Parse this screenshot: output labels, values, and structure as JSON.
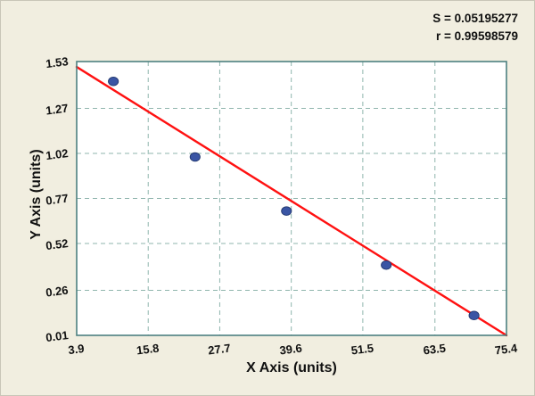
{
  "chart_data": {
    "type": "scatter",
    "title": "",
    "xlabel": "X Axis (units)",
    "ylabel": "Y Axis (units)",
    "xlim": [
      3.9,
      75.4
    ],
    "ylim": [
      0.01,
      1.53
    ],
    "x_ticks": [
      "3.9",
      "15.8",
      "27.7",
      "39.6",
      "51.5",
      "63.5",
      "75.4"
    ],
    "y_ticks": [
      "0.01",
      "0.26",
      "0.52",
      "0.77",
      "1.02",
      "1.27",
      "1.53"
    ],
    "grid": "dashed",
    "legend": "none",
    "points": [
      {
        "x": 10.0,
        "y": 1.42
      },
      {
        "x": 23.6,
        "y": 1.0
      },
      {
        "x": 38.8,
        "y": 0.7
      },
      {
        "x": 55.4,
        "y": 0.4
      },
      {
        "x": 70.0,
        "y": 0.12
      }
    ],
    "regression_line": {
      "x1": 3.9,
      "y1": 1.5,
      "x2": 75.4,
      "y2": 0.01
    },
    "annotations": [
      "S = 0.05195277",
      "r = 0.99598579"
    ],
    "colors": {
      "background": "#f1eee0",
      "plot_bg": "#ffffff",
      "grid": "#8fb5ad",
      "border": "#4d8080",
      "point_fill": "#3a55a4",
      "point_stroke": "#22386e",
      "line": "#ff1111",
      "text": "#111111"
    }
  }
}
